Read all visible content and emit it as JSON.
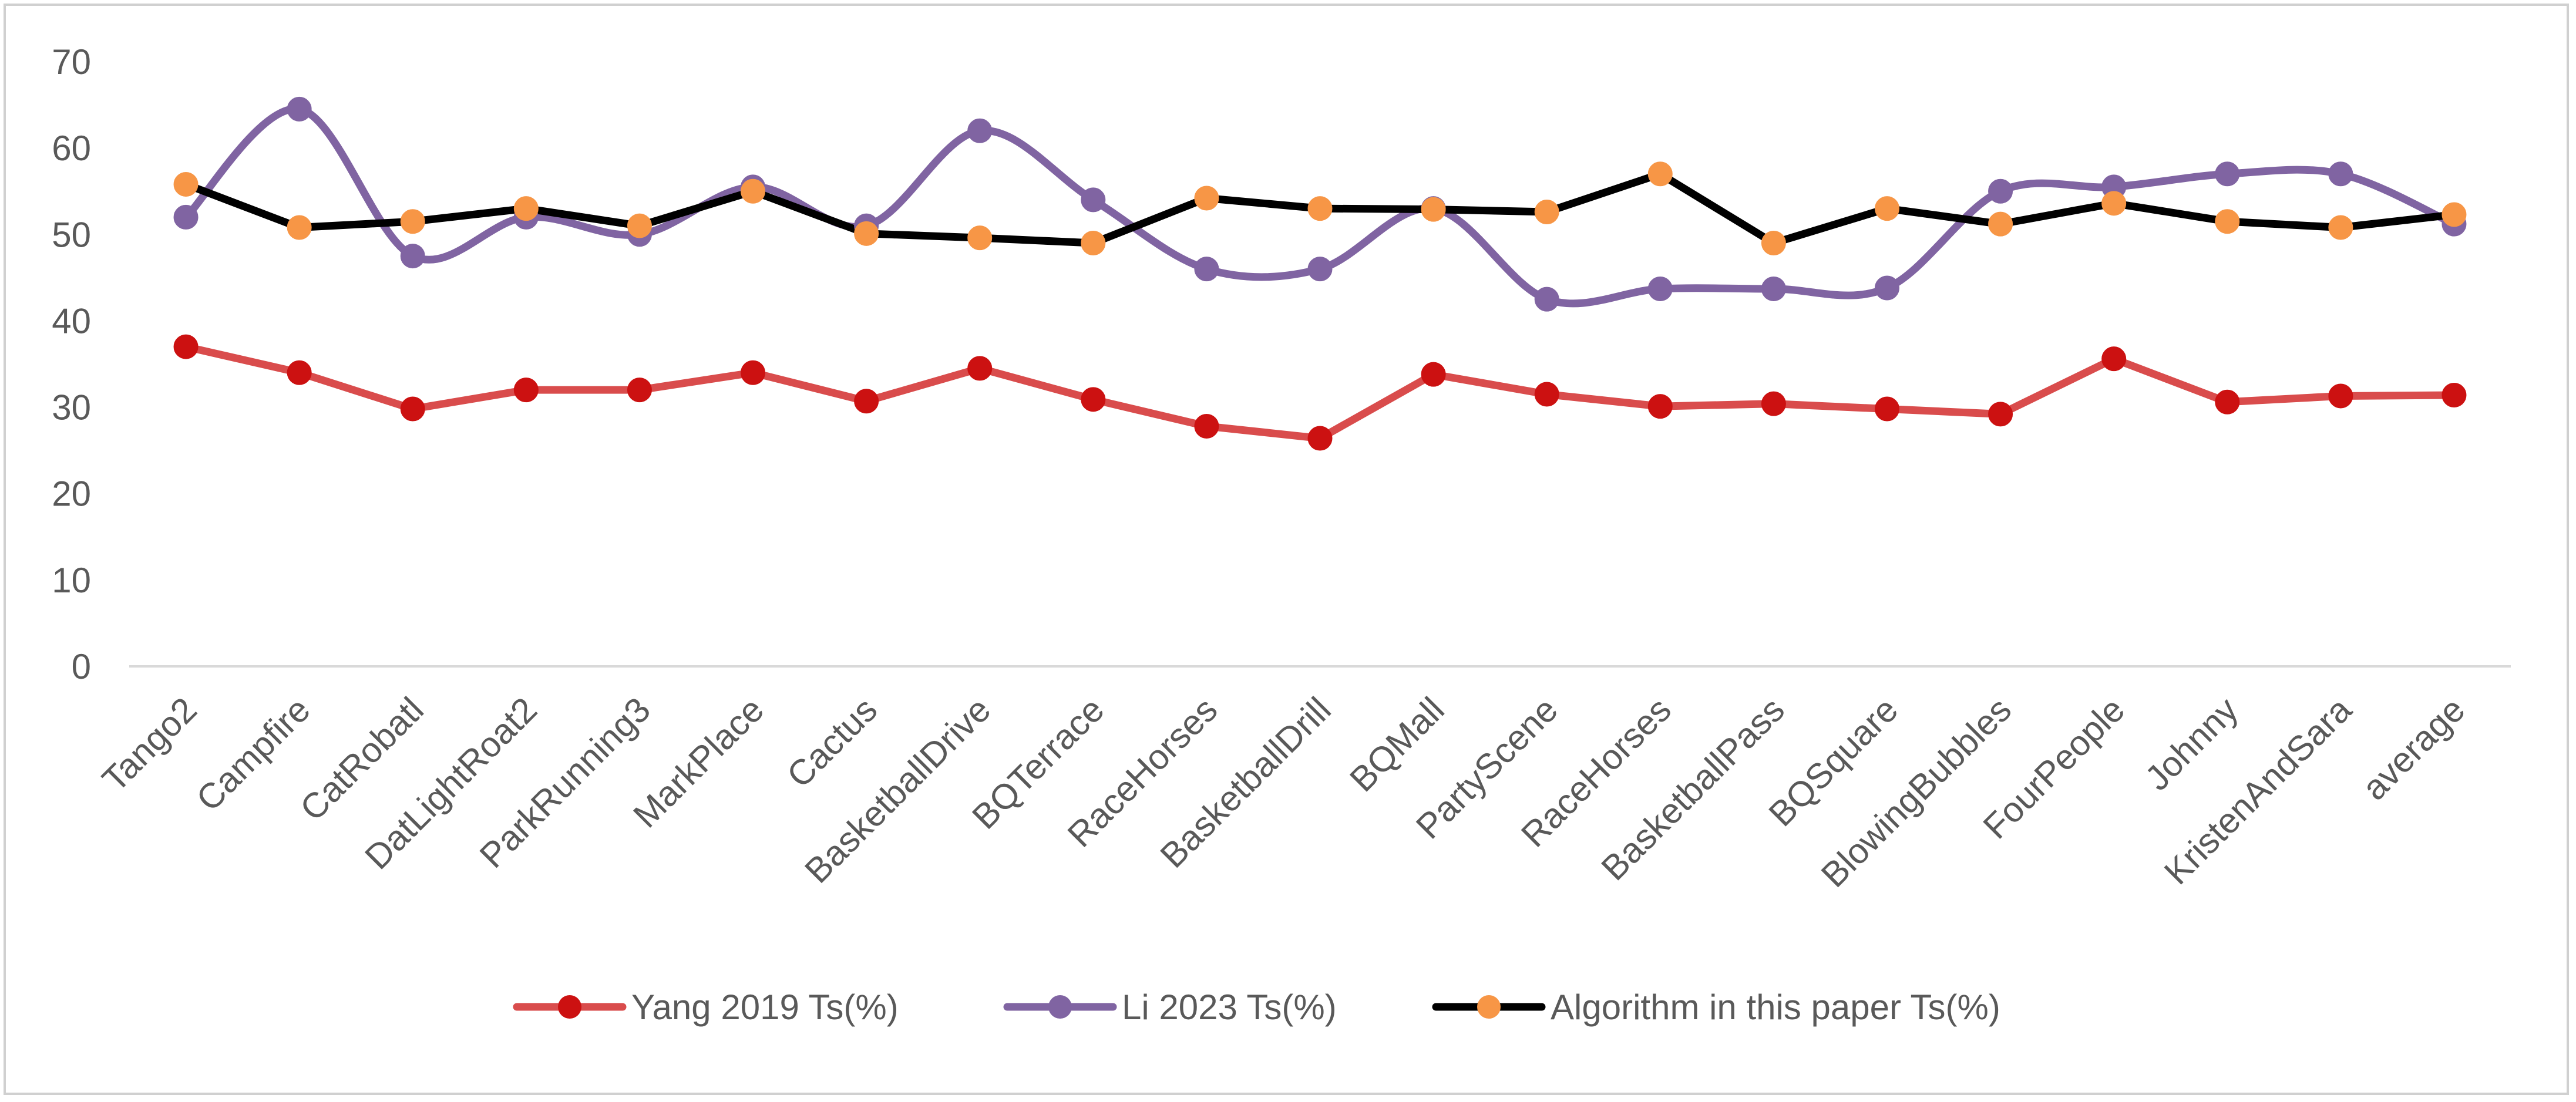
{
  "chart_data": {
    "type": "line",
    "title": "",
    "xlabel": "",
    "ylabel": "",
    "ylim": [
      0,
      70
    ],
    "yticks": [
      0,
      10,
      20,
      30,
      40,
      50,
      60,
      70
    ],
    "grid": false,
    "legend_position": "bottom",
    "categories": [
      "Tango2",
      "Campfire",
      "CatRobatl",
      "DatLightRoat2",
      "ParkRunning3",
      "MarkPlace",
      "Cactus",
      "BasketballDrive",
      "BQTerrace",
      "RaceHorses",
      "BasketballDrill",
      "BQMall",
      "PartyScene",
      "RaceHorses",
      "BasketballPass",
      "BQSquare",
      "BlowingBubbles",
      "FourPeople",
      "Johnny",
      "KristenAndSara",
      "average"
    ],
    "series": [
      {
        "name": "Yang 2019 Ts(%)",
        "line_color": "#d94c4c",
        "marker_color": "#cc1111",
        "smooth": false,
        "values": [
          37.0,
          34.0,
          29.8,
          32.0,
          32.0,
          34.0,
          30.7,
          34.5,
          30.9,
          27.8,
          26.4,
          33.8,
          31.5,
          30.1,
          30.4,
          29.8,
          29.2,
          35.6,
          30.6,
          31.3,
          31.4
        ]
      },
      {
        "name": "Li 2023 Ts(%)",
        "line_color": "#8064a2",
        "marker_color": "#8064a2",
        "smooth": true,
        "values": [
          52.0,
          64.5,
          47.5,
          52.0,
          50.0,
          55.5,
          51.0,
          62.0,
          54.0,
          46.0,
          46.0,
          53.0,
          42.5,
          43.7,
          43.7,
          43.8,
          55.0,
          55.5,
          57.0,
          57.0,
          51.2
        ]
      },
      {
        "name": "Algorithm in this paper Ts(%)",
        "line_color": "#000000",
        "marker_color": "#f79646",
        "smooth": false,
        "values": [
          55.8,
          50.8,
          51.5,
          53.0,
          51.0,
          55.0,
          50.1,
          49.6,
          49.0,
          54.2,
          53.0,
          52.9,
          52.6,
          57.0,
          49.0,
          53.0,
          51.2,
          53.6,
          51.5,
          50.8,
          52.3
        ]
      }
    ]
  }
}
